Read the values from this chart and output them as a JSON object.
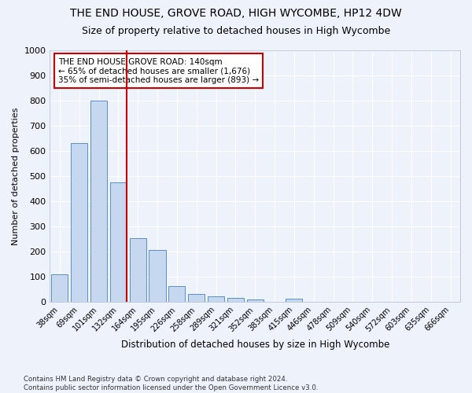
{
  "title": "THE END HOUSE, GROVE ROAD, HIGH WYCOMBE, HP12 4DW",
  "subtitle": "Size of property relative to detached houses in High Wycombe",
  "xlabel": "Distribution of detached houses by size in High Wycombe",
  "ylabel": "Number of detached properties",
  "footnote1": "Contains HM Land Registry data © Crown copyright and database right 2024.",
  "footnote2": "Contains public sector information licensed under the Open Government Licence v3.0.",
  "categories": [
    "38sqm",
    "69sqm",
    "101sqm",
    "132sqm",
    "164sqm",
    "195sqm",
    "226sqm",
    "258sqm",
    "289sqm",
    "321sqm",
    "352sqm",
    "383sqm",
    "415sqm",
    "446sqm",
    "478sqm",
    "509sqm",
    "540sqm",
    "572sqm",
    "603sqm",
    "635sqm",
    "666sqm"
  ],
  "values": [
    110,
    630,
    800,
    475,
    252,
    205,
    62,
    30,
    22,
    15,
    10,
    0,
    12,
    0,
    0,
    0,
    0,
    0,
    0,
    0,
    0
  ],
  "bar_color": "#c5d8f0",
  "bar_edge_color": "#5b8fc9",
  "vline_x_index": 3,
  "vline_color": "#cc0000",
  "annotation_title": "THE END HOUSE GROVE ROAD: 140sqm",
  "annotation_line1": "← 65% of detached houses are smaller (1,676)",
  "annotation_line2": "35% of semi-detached houses are larger (893) →",
  "annotation_box_color": "#cc0000",
  "ylim": [
    0,
    1000
  ],
  "yticks": [
    0,
    100,
    200,
    300,
    400,
    500,
    600,
    700,
    800,
    900,
    1000
  ],
  "background_color": "#eef2fb",
  "grid_color": "#ffffff",
  "title_fontsize": 10,
  "subtitle_fontsize": 9
}
